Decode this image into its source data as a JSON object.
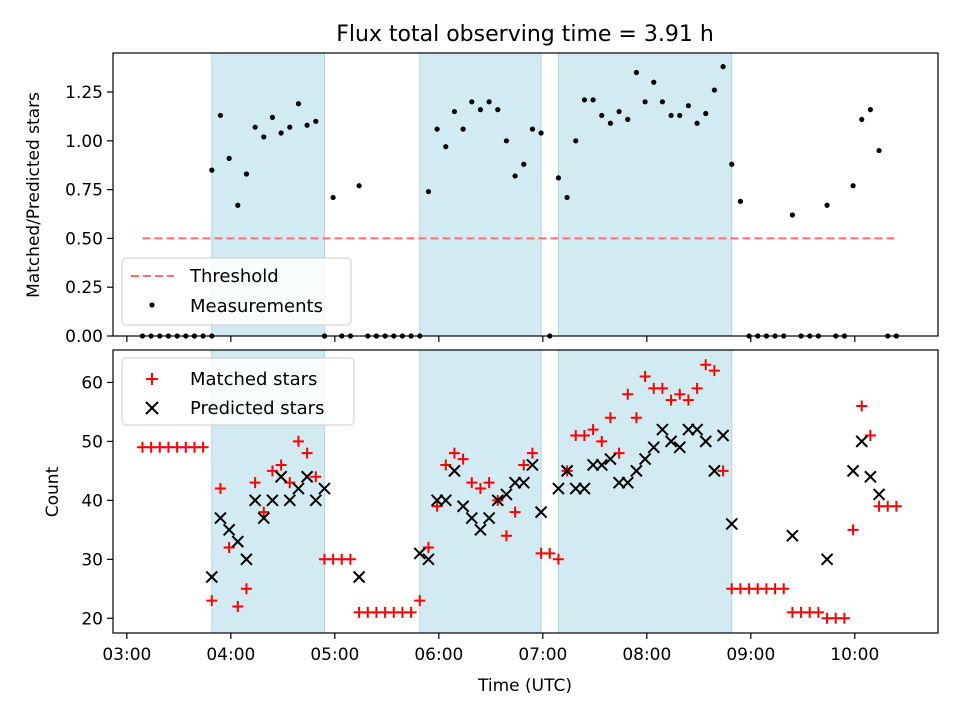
{
  "title": "Flux total observing time = 3.91 h",
  "colors": {
    "threshold": "#ff6f6f",
    "measurement": "#000000",
    "matched": "#ff0000",
    "predicted": "#000000",
    "band": "#add8e6"
  },
  "chart_data": [
    {
      "type": "scatter",
      "panel": "top",
      "ylabel": "Matched/Predicted stars",
      "xlabel": "",
      "xlim": [
        "02:52",
        "10:48"
      ],
      "ylim": [
        0,
        1.45
      ],
      "yticks": [
        "0.00",
        "0.25",
        "0.50",
        "0.75",
        "1.00",
        "1.25"
      ],
      "shaded_intervals": [
        [
          "03:49",
          "04:54"
        ],
        [
          "05:49",
          "06:59"
        ],
        [
          "07:09",
          "08:49"
        ]
      ],
      "legend": {
        "placement": "lower-left",
        "entries": [
          "Threshold",
          "Measurements"
        ]
      },
      "series": [
        {
          "name": "Threshold",
          "kind": "dashed-line",
          "x": [
            "03:09",
            "10:24"
          ],
          "y": [
            0.5,
            0.5
          ]
        },
        {
          "name": "Measurements",
          "kind": "points",
          "x": [
            "03:09",
            "03:14",
            "03:19",
            "03:24",
            "03:29",
            "03:34",
            "03:39",
            "03:44",
            "03:49",
            "03:49",
            "03:54",
            "03:59",
            "04:04",
            "04:09",
            "04:14",
            "04:19",
            "04:24",
            "04:29",
            "04:34",
            "04:39",
            "04:44",
            "04:49",
            "04:54",
            "04:59",
            "05:04",
            "05:09",
            "05:14",
            "05:19",
            "05:24",
            "05:29",
            "05:34",
            "05:39",
            "05:44",
            "05:49",
            "05:54",
            "05:59",
            "06:04",
            "06:09",
            "06:14",
            "06:19",
            "06:24",
            "06:29",
            "06:34",
            "06:39",
            "06:44",
            "06:49",
            "06:54",
            "06:59",
            "07:04",
            "07:09",
            "07:14",
            "07:19",
            "07:24",
            "07:29",
            "07:34",
            "07:39",
            "07:44",
            "07:49",
            "07:54",
            "07:59",
            "08:04",
            "08:09",
            "08:14",
            "08:19",
            "08:24",
            "08:29",
            "08:34",
            "08:39",
            "08:44",
            "08:49",
            "08:54",
            "08:59",
            "09:04",
            "09:09",
            "09:14",
            "09:19",
            "09:24",
            "09:29",
            "09:34",
            "09:39",
            "09:44",
            "09:49",
            "09:54",
            "09:59",
            "10:04",
            "10:09",
            "10:14",
            "10:19",
            "10:24"
          ],
          "y": [
            0,
            0,
            0,
            0,
            0,
            0,
            0,
            0,
            0,
            0.85,
            1.13,
            0.91,
            0.67,
            0.83,
            1.07,
            1.02,
            1.12,
            1.04,
            1.07,
            1.19,
            1.08,
            1.1,
            0,
            0.71,
            0,
            0,
            0.77,
            0,
            0,
            0,
            0,
            0,
            0,
            0,
            0.74,
            1.06,
            0.97,
            1.15,
            1.06,
            1.2,
            1.16,
            1.2,
            1.16,
            1.0,
            0.82,
            0.88,
            1.06,
            1.04,
            0,
            0.81,
            0.71,
            1.0,
            1.21,
            1.21,
            1.13,
            1.09,
            1.15,
            1.11,
            1.35,
            1.2,
            1.3,
            1.2,
            1.13,
            1.13,
            1.18,
            1.09,
            1.14,
            1.26,
            1.38,
            0.88,
            0.69,
            0,
            0,
            0,
            0,
            0,
            0.62,
            0,
            0,
            0,
            0.67,
            0,
            0,
            0.77,
            1.11,
            1.16,
            0.95,
            0,
            0
          ]
        }
      ]
    },
    {
      "type": "scatter",
      "panel": "bottom",
      "ylabel": "Count",
      "xlabel": "Time (UTC)",
      "xlim": [
        "02:52",
        "10:48"
      ],
      "ylim": [
        17.5,
        65.5
      ],
      "yticks": [
        "20",
        "30",
        "40",
        "50",
        "60"
      ],
      "xticks": [
        "03:00",
        "04:00",
        "05:00",
        "06:00",
        "07:00",
        "08:00",
        "09:00",
        "10:00"
      ],
      "shaded_intervals": [
        [
          "03:49",
          "04:54"
        ],
        [
          "05:49",
          "06:59"
        ],
        [
          "07:09",
          "08:49"
        ]
      ],
      "legend": {
        "placement": "upper-left",
        "entries": [
          "Matched stars",
          "Predicted stars"
        ]
      },
      "series": [
        {
          "name": "Matched stars",
          "marker": "+",
          "x": [
            "03:09",
            "03:14",
            "03:19",
            "03:24",
            "03:29",
            "03:34",
            "03:39",
            "03:44",
            "03:49",
            "03:54",
            "03:59",
            "04:04",
            "04:09",
            "04:14",
            "04:19",
            "04:24",
            "04:29",
            "04:34",
            "04:39",
            "04:44",
            "04:49",
            "04:54",
            "04:59",
            "05:04",
            "05:09",
            "05:14",
            "05:19",
            "05:24",
            "05:29",
            "05:34",
            "05:39",
            "05:44",
            "05:49",
            "05:54",
            "05:59",
            "06:04",
            "06:09",
            "06:14",
            "06:19",
            "06:24",
            "06:29",
            "06:34",
            "06:39",
            "06:44",
            "06:49",
            "06:54",
            "06:59",
            "07:04",
            "07:09",
            "07:14",
            "07:19",
            "07:24",
            "07:29",
            "07:34",
            "07:39",
            "07:44",
            "07:49",
            "07:54",
            "07:59",
            "08:04",
            "08:09",
            "08:14",
            "08:19",
            "08:24",
            "08:29",
            "08:34",
            "08:39",
            "08:44",
            "08:49",
            "08:54",
            "08:59",
            "09:04",
            "09:09",
            "09:14",
            "09:19",
            "09:24",
            "09:29",
            "09:34",
            "09:39",
            "09:44",
            "09:49",
            "09:54",
            "09:59",
            "10:04",
            "10:09",
            "10:14",
            "10:19",
            "10:24"
          ],
          "y": [
            49,
            49,
            49,
            49,
            49,
            49,
            49,
            49,
            23,
            42,
            32,
            22,
            25,
            43,
            38,
            45,
            46,
            43,
            50,
            48,
            44,
            30,
            30,
            30,
            30,
            21,
            21,
            21,
            21,
            21,
            21,
            21,
            23,
            32,
            39,
            46,
            48,
            47,
            43,
            42,
            43,
            40,
            34,
            38,
            46,
            48,
            31,
            31,
            30,
            45,
            51,
            51,
            52,
            50,
            54,
            48,
            58,
            54,
            61,
            59,
            59,
            57,
            58,
            57,
            59,
            63,
            62,
            45,
            25,
            25,
            25,
            25,
            25,
            25,
            25,
            21,
            21,
            21,
            21,
            20,
            20,
            20,
            35,
            56,
            51,
            39,
            39,
            39
          ]
        },
        {
          "name": "Predicted stars",
          "marker": "x",
          "x": [
            "03:49",
            "03:54",
            "03:59",
            "04:04",
            "04:09",
            "04:14",
            "04:19",
            "04:24",
            "04:29",
            "04:34",
            "04:39",
            "04:44",
            "04:49",
            "04:54",
            "05:14",
            "05:49",
            "05:54",
            "05:59",
            "06:04",
            "06:09",
            "06:14",
            "06:19",
            "06:24",
            "06:29",
            "06:34",
            "06:39",
            "06:44",
            "06:49",
            "06:54",
            "06:59",
            "07:09",
            "07:14",
            "07:19",
            "07:24",
            "07:29",
            "07:34",
            "07:39",
            "07:44",
            "07:49",
            "07:54",
            "07:59",
            "08:04",
            "08:09",
            "08:14",
            "08:19",
            "08:24",
            "08:29",
            "08:34",
            "08:39",
            "08:44",
            "08:49",
            "09:24",
            "09:44",
            "09:59",
            "10:04",
            "10:09",
            "10:14"
          ],
          "y": [
            27,
            37,
            35,
            33,
            30,
            40,
            37,
            40,
            44,
            40,
            42,
            44,
            40,
            42,
            27,
            31,
            30,
            40,
            40,
            45,
            39,
            37,
            35,
            37,
            40,
            41,
            43,
            43,
            46,
            38,
            42,
            45,
            42,
            42,
            46,
            46,
            47,
            43,
            43,
            45,
            47,
            49,
            52,
            50,
            49,
            52,
            52,
            50,
            45,
            51,
            36,
            34,
            30,
            45,
            50,
            44,
            41
          ]
        }
      ]
    }
  ]
}
